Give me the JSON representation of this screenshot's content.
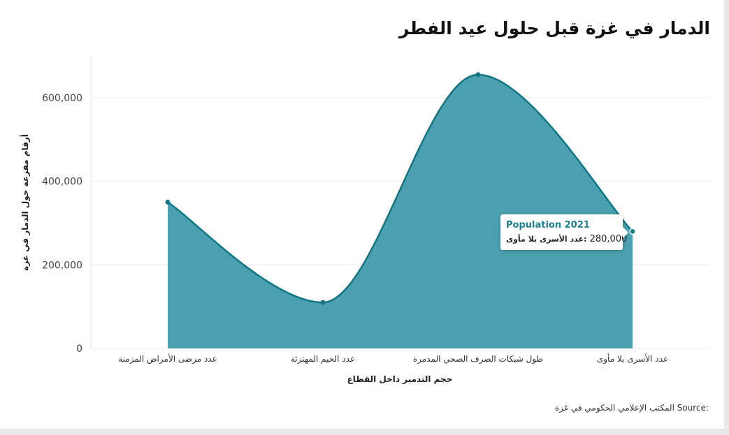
{
  "title": "الدمار في غزة قبل حلول عيد الفطر",
  "source_label": "Source:",
  "source_text": "المكتب الإعلامي الحكومي في غزة",
  "colors": {
    "line": "#137582",
    "fill": "#4aa0ae",
    "marker": "#137582",
    "grid": "#ececec",
    "tooltip_title": "#1b7f8c"
  },
  "chart_data": {
    "type": "area",
    "categories": [
      "عدد مرضى الأمراض المزمنة",
      "عدد الخيم المهترئة",
      "طول شبكات الصرف الصحي المدمرة",
      "عدد الأسرى بلا مأوى"
    ],
    "series": [
      {
        "name": "Population 2021",
        "values": [
          350000,
          110000,
          655000,
          280000
        ]
      }
    ],
    "xlabel": "حجم التدمير داخل القطاع",
    "ylabel": "أرقام مفزعة حول الدمار في غزة",
    "yticks": [
      "0",
      "200,000",
      "400,000",
      "600,000"
    ],
    "ytick_values": [
      0,
      200000,
      400000,
      600000
    ],
    "ylim": [
      0,
      700000
    ],
    "grid": true,
    "curve": "smooth",
    "legend": "none"
  },
  "tooltip": {
    "series_name": "Population 2021",
    "category": "عدد الأسرى بلا مأوى",
    "value": "280,000"
  }
}
